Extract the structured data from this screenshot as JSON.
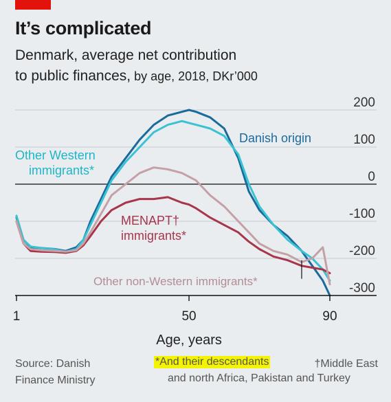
{
  "header": {
    "title": "It’s complicated",
    "subtitle_line1": "Denmark, average net contribution",
    "subtitle_line2_bold": "to public finances,",
    "subtitle_line2_light": " by age, 2018, DKr’000"
  },
  "annotations": {
    "danish_origin": "Danish origin",
    "other_western_1": "Other Western",
    "other_western_2": "immigrants*",
    "menapt_1": "MENAPT†",
    "menapt_2": "immigrants*",
    "other_non_western": "Other non-Western immigrants*"
  },
  "footer": {
    "source_1": "Source: Danish",
    "source_2": "Finance Ministry",
    "note_star": "*And their descendants",
    "note_dagger_1": "†Middle East",
    "note_dagger_2": "and north Africa, Pakistan and Turkey"
  },
  "colors": {
    "danish_origin": "#1b6a9c",
    "other_western": "#39c3d2",
    "menapt": "#a8354a",
    "other_non_western": "#c4a1a7",
    "background": "#e9edf0",
    "highlight": "#f5f400",
    "brand_red": "#e3120b"
  },
  "chart_data": {
    "type": "line",
    "xlabel": "Age, years",
    "ylabel": "",
    "xlim": [
      1,
      90
    ],
    "ylim": [
      -300,
      200
    ],
    "x_ticks": [
      1,
      50,
      90
    ],
    "y_ticks": [
      200,
      100,
      0,
      -100,
      -200,
      -300
    ],
    "y_tick_labels": [
      "200",
      "100",
      "0",
      "-100",
      "-200",
      "-300"
    ],
    "grid": "horizontal",
    "x": [
      1,
      3,
      5,
      8,
      12,
      15,
      18,
      20,
      22,
      25,
      28,
      32,
      36,
      40,
      44,
      48,
      50,
      52,
      56,
      60,
      64,
      67,
      70,
      74,
      78,
      82,
      85,
      88,
      90
    ],
    "series": [
      {
        "name": "Danish origin",
        "values": [
          -90,
          -150,
          -170,
          -172,
          -175,
          -180,
          -170,
          -150,
          -100,
          -40,
          20,
          70,
          120,
          160,
          185,
          195,
          200,
          195,
          180,
          150,
          70,
          -20,
          -70,
          -110,
          -140,
          -180,
          -220,
          -260,
          -300
        ]
      },
      {
        "name": "Other Western immigrants*",
        "values": [
          -85,
          -150,
          -168,
          -172,
          -176,
          -182,
          -175,
          -150,
          -110,
          -50,
          10,
          60,
          100,
          140,
          160,
          170,
          165,
          160,
          150,
          130,
          80,
          0,
          -60,
          -110,
          -150,
          -180,
          -200,
          -230,
          -260
        ]
      },
      {
        "name": "MENAPT† immigrants*",
        "values": [
          -100,
          -160,
          -180,
          -182,
          -183,
          -185,
          -180,
          -165,
          -140,
          -100,
          -70,
          -50,
          -40,
          -40,
          -35,
          -50,
          -55,
          -65,
          -90,
          -110,
          -130,
          -155,
          -175,
          -195,
          -205,
          -220,
          -225,
          -230,
          -240
        ]
      },
      {
        "name": "Other non-Western immigrants*",
        "values": [
          -100,
          -160,
          -175,
          -178,
          -180,
          -182,
          -178,
          -160,
          -130,
          -80,
          -30,
          0,
          30,
          45,
          40,
          30,
          20,
          10,
          -30,
          -60,
          -100,
          -130,
          -160,
          -180,
          -190,
          -210,
          -200,
          -170,
          -270
        ]
      }
    ]
  }
}
